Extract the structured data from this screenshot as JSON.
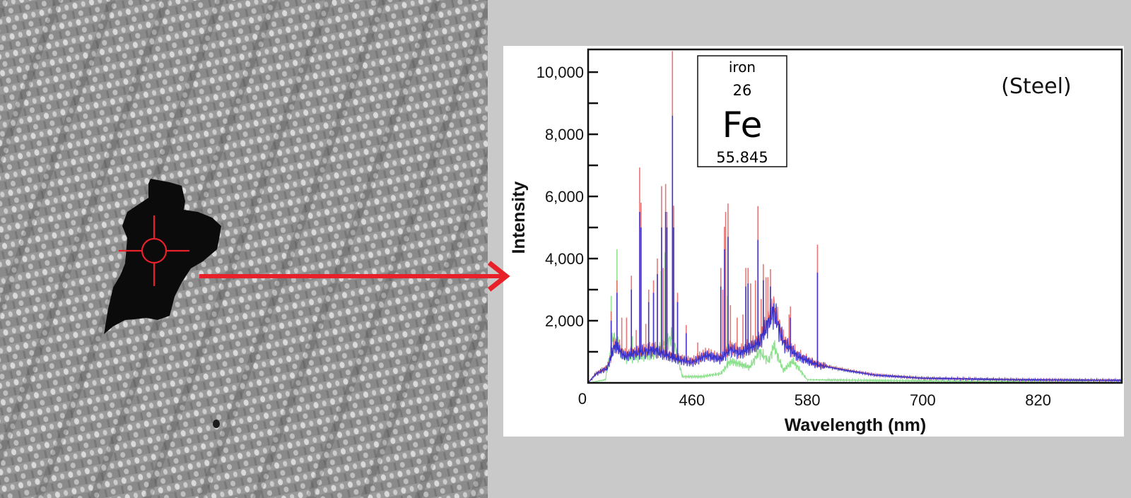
{
  "photo": {
    "description_icons": [
      "crosshair-icon",
      "arrow-right-icon"
    ],
    "marker_color": "#e8202a"
  },
  "element_box": {
    "name": "iron",
    "number": "26",
    "symbol": "Fe",
    "mass": "55.845"
  },
  "sample_label": "(Steel)",
  "chart_data": {
    "type": "line",
    "title": "",
    "xlabel": "Wavelength (nm)",
    "ylabel": "Intensity",
    "xlim": [
      352,
      907
    ],
    "ylim": [
      0,
      10730
    ],
    "x_ticks": [
      460,
      580,
      700,
      820
    ],
    "x_tick_labels": [
      "460",
      "580",
      "700",
      "820"
    ],
    "y_ticks": [
      0,
      2000,
      4000,
      6000,
      8000,
      10000
    ],
    "y_tick_labels": [
      "0",
      "2,000",
      "4,000",
      "6,000",
      "8,000",
      "10,000"
    ],
    "y_minor_ticks": [
      1000,
      3000,
      5000,
      7000,
      9000
    ],
    "grid": false,
    "legend": "none",
    "series": [
      {
        "color": "#e06060",
        "baseline": [
          [
            352,
            0
          ],
          [
            360,
            300
          ],
          [
            372,
            500
          ],
          [
            380,
            1300
          ],
          [
            390,
            900
          ],
          [
            400,
            1000
          ],
          [
            420,
            1100
          ],
          [
            445,
            800
          ],
          [
            460,
            700
          ],
          [
            475,
            950
          ],
          [
            490,
            800
          ],
          [
            500,
            1150
          ],
          [
            510,
            1000
          ],
          [
            530,
            1350
          ],
          [
            545,
            2450
          ],
          [
            555,
            1400
          ],
          [
            570,
            900
          ],
          [
            590,
            600
          ],
          [
            620,
            420
          ],
          [
            650,
            260
          ],
          [
            700,
            150
          ],
          [
            800,
            100
          ],
          [
            907,
            80
          ]
        ],
        "peaks": [
          [
            376,
            2300
          ],
          [
            382,
            3300
          ],
          [
            387,
            2100
          ],
          [
            392,
            2100
          ],
          [
            397,
            3450
          ],
          [
            402,
            1700
          ],
          [
            405.6,
            6930
          ],
          [
            407,
            5800
          ],
          [
            412,
            1900
          ],
          [
            415,
            3000
          ],
          [
            420,
            3300
          ],
          [
            424,
            4000
          ],
          [
            428.4,
            6330
          ],
          [
            430,
            3700
          ],
          [
            432.6,
            6400
          ],
          [
            434,
            5500
          ],
          [
            439.7,
            10675
          ],
          [
            441,
            5700
          ],
          [
            445,
            2900
          ],
          [
            454,
            1860
          ],
          [
            466,
            1300
          ],
          [
            490,
            3700
          ],
          [
            492,
            3000
          ],
          [
            493.8,
            5020
          ],
          [
            495,
            5500
          ],
          [
            497.5,
            5770
          ],
          [
            500,
            2500
          ],
          [
            507,
            2100
          ],
          [
            513,
            2200
          ],
          [
            516,
            3700
          ],
          [
            518.3,
            3700
          ],
          [
            521,
            3200
          ],
          [
            526,
            3300
          ],
          [
            528.6,
            5690
          ],
          [
            532,
            2700
          ],
          [
            534.2,
            3820
          ],
          [
            537,
            3400
          ],
          [
            539,
            3400
          ],
          [
            541.6,
            3660
          ],
          [
            561,
            2200
          ],
          [
            562.4,
            2460
          ],
          [
            590.5,
            4450
          ]
        ]
      },
      {
        "color": "#2a2ad0",
        "baseline": [
          [
            352,
            0
          ],
          [
            360,
            280
          ],
          [
            372,
            480
          ],
          [
            380,
            1200
          ],
          [
            390,
            850
          ],
          [
            400,
            950
          ],
          [
            420,
            1050
          ],
          [
            445,
            750
          ],
          [
            460,
            650
          ],
          [
            475,
            880
          ],
          [
            490,
            760
          ],
          [
            500,
            1080
          ],
          [
            510,
            950
          ],
          [
            530,
            1280
          ],
          [
            545,
            2300
          ],
          [
            555,
            1300
          ],
          [
            570,
            850
          ],
          [
            590,
            580
          ],
          [
            620,
            400
          ],
          [
            650,
            250
          ],
          [
            700,
            150
          ],
          [
            800,
            100
          ],
          [
            907,
            80
          ]
        ],
        "peaks": [
          [
            376,
            2000
          ],
          [
            382,
            2900
          ],
          [
            397,
            3000
          ],
          [
            405.6,
            5500
          ],
          [
            407,
            5000
          ],
          [
            415,
            2600
          ],
          [
            420,
            2900
          ],
          [
            424,
            3500
          ],
          [
            428.4,
            5000
          ],
          [
            432.6,
            5500
          ],
          [
            434,
            5000
          ],
          [
            439.7,
            8600
          ],
          [
            441,
            5000
          ],
          [
            445,
            2600
          ],
          [
            454,
            1600
          ],
          [
            490,
            3100
          ],
          [
            493.8,
            4300
          ],
          [
            497.5,
            4700
          ],
          [
            516,
            3100
          ],
          [
            518.3,
            3200
          ],
          [
            528.6,
            4600
          ],
          [
            534.2,
            3300
          ],
          [
            541.6,
            3100
          ],
          [
            562.4,
            2100
          ],
          [
            590.5,
            3550
          ]
        ]
      },
      {
        "color": "#7fdc7f",
        "baseline": [
          [
            352,
            0
          ],
          [
            370,
            100
          ],
          [
            378,
            1500
          ],
          [
            390,
            800
          ],
          [
            420,
            900
          ],
          [
            440,
            1500
          ],
          [
            450,
            200
          ],
          [
            470,
            200
          ],
          [
            490,
            300
          ],
          [
            500,
            700
          ],
          [
            520,
            500
          ],
          [
            530,
            1000
          ],
          [
            540,
            700
          ],
          [
            545,
            1200
          ],
          [
            555,
            400
          ],
          [
            565,
            700
          ],
          [
            580,
            100
          ],
          [
            907,
            0
          ]
        ],
        "peaks": [
          [
            376,
            2800
          ],
          [
            382,
            4300
          ],
          [
            398,
            1500
          ],
          [
            428,
            3600
          ],
          [
            432,
            4200
          ],
          [
            441,
            2500
          ],
          [
            497,
            2800
          ],
          [
            528,
            1500
          ],
          [
            545,
            1300
          ]
        ]
      }
    ]
  }
}
